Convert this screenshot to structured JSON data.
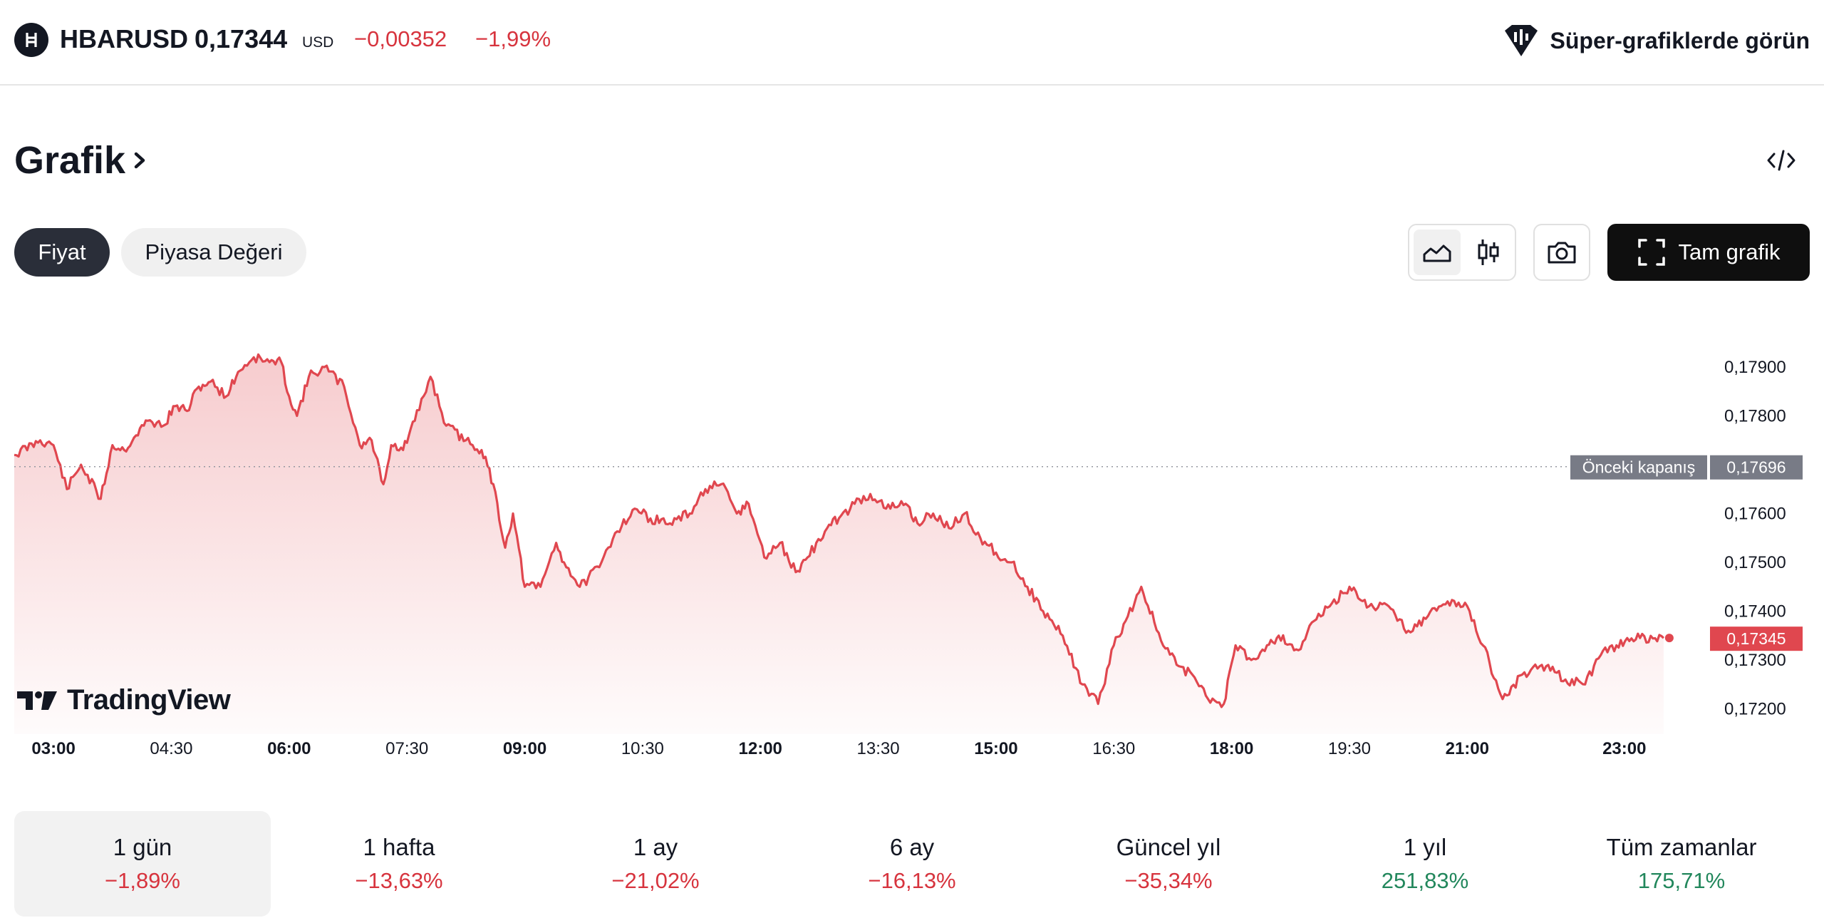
{
  "header": {
    "symbol": "HBARUSD",
    "price": "0,17344",
    "currency": "USD",
    "change": "−0,00352",
    "change_percent": "−1,99%",
    "super_charts_label": "Süper-grafiklerde görün"
  },
  "section": {
    "title": "Grafik"
  },
  "chips": {
    "price": "Fiyat",
    "market_cap": "Piyasa Değeri"
  },
  "toolbar": {
    "full_chart_label": "Tam grafik"
  },
  "brand": {
    "name": "TradingView"
  },
  "colors": {
    "line": "#e0474f",
    "negative": "#d7343e",
    "positive": "#22875c",
    "prev_close_tag": "#787b86"
  },
  "chart_data": {
    "type": "area",
    "y_ticks": [
      "0,17900",
      "0,17800",
      "0,17600",
      "0,17500",
      "0,17400",
      "0,17300",
      "0,17200"
    ],
    "ylim": [
      0.1718,
      0.1795
    ],
    "x_ticks": [
      {
        "label": "03:00",
        "major": true
      },
      {
        "label": "04:30",
        "major": false
      },
      {
        "label": "06:00",
        "major": true
      },
      {
        "label": "07:30",
        "major": false
      },
      {
        "label": "09:00",
        "major": true
      },
      {
        "label": "10:30",
        "major": false
      },
      {
        "label": "12:00",
        "major": true
      },
      {
        "label": "13:30",
        "major": false
      },
      {
        "label": "15:00",
        "major": true
      },
      {
        "label": "16:30",
        "major": false
      },
      {
        "label": "18:00",
        "major": true
      },
      {
        "label": "19:30",
        "major": false
      },
      {
        "label": "21:00",
        "major": true
      },
      {
        "label": "23:00",
        "major": true
      }
    ],
    "previous_close": {
      "label": "Önceki kapanış",
      "value_label": "0,17696",
      "value": 0.17696
    },
    "last": {
      "value_label": "0,17345",
      "value": 0.17345
    },
    "x_hours": [
      2.5,
      2.83,
      3.0,
      3.17,
      3.35,
      3.6,
      3.75,
      3.9,
      4.05,
      4.2,
      4.4,
      4.55,
      4.7,
      4.85,
      5.0,
      5.2,
      5.35,
      5.55,
      5.75,
      5.9,
      6.0,
      6.1,
      6.25,
      6.45,
      6.7,
      6.9,
      7.05,
      7.2,
      7.3,
      7.45,
      7.6,
      7.8,
      8.0,
      8.25,
      8.45,
      8.6,
      8.75,
      8.85,
      9.0,
      9.2,
      9.4,
      9.5,
      9.7,
      9.95,
      10.15,
      10.4,
      10.6,
      10.85,
      11.1,
      11.3,
      11.5,
      11.7,
      11.85,
      12.05,
      12.25,
      12.45,
      12.6,
      12.85,
      13.0,
      13.2,
      13.4,
      13.6,
      13.85,
      14.0,
      14.2,
      14.4,
      14.6,
      14.8,
      15.0,
      15.2,
      15.4,
      15.6,
      15.85,
      16.1,
      16.3,
      16.5,
      16.65,
      16.85,
      17.1,
      17.3,
      17.5,
      17.7,
      17.9,
      18.05,
      18.25,
      18.45,
      18.6,
      18.85,
      19.05,
      19.25,
      19.5,
      19.75,
      20.0,
      20.25,
      20.5,
      20.75,
      21.0,
      21.2,
      21.45,
      21.7,
      21.95,
      22.25,
      22.5,
      22.7,
      22.9,
      23.2,
      23.5
    ],
    "values": [
      0.1772,
      0.1775,
      0.1774,
      0.1765,
      0.177,
      0.1763,
      0.1774,
      0.1773,
      0.1776,
      0.1779,
      0.1778,
      0.1782,
      0.1781,
      0.1786,
      0.1787,
      0.1784,
      0.1789,
      0.1792,
      0.1791,
      0.1791,
      0.1784,
      0.178,
      0.1788,
      0.179,
      0.1786,
      0.1774,
      0.1775,
      0.1766,
      0.1774,
      0.1773,
      0.1779,
      0.1788,
      0.1778,
      0.1775,
      0.1773,
      0.1766,
      0.1753,
      0.176,
      0.1745,
      0.1745,
      0.1754,
      0.175,
      0.1745,
      0.1749,
      0.1756,
      0.1761,
      0.1759,
      0.1758,
      0.176,
      0.1765,
      0.1766,
      0.176,
      0.1762,
      0.1751,
      0.1754,
      0.1748,
      0.1751,
      0.1757,
      0.1759,
      0.1762,
      0.1764,
      0.1761,
      0.1762,
      0.1758,
      0.176,
      0.1757,
      0.176,
      0.1755,
      0.1752,
      0.175,
      0.1745,
      0.174,
      0.1735,
      0.1725,
      0.1721,
      0.1733,
      0.1738,
      0.1745,
      0.1734,
      0.1729,
      0.1727,
      0.1722,
      0.1721,
      0.1733,
      0.173,
      0.1733,
      0.1735,
      0.1732,
      0.1738,
      0.1741,
      0.1745,
      0.1741,
      0.1741,
      0.1736,
      0.1739,
      0.1742,
      0.1741,
      0.1733,
      0.1722,
      0.1727,
      0.1729,
      0.1726,
      0.1725,
      0.1731,
      0.1733,
      0.17345,
      0.17345
    ]
  },
  "periods": [
    {
      "label": "1 gün",
      "value": "−1,89%",
      "dir": "neg"
    },
    {
      "label": "1 hafta",
      "value": "−13,63%",
      "dir": "neg"
    },
    {
      "label": "1 ay",
      "value": "−21,02%",
      "dir": "neg"
    },
    {
      "label": "6 ay",
      "value": "−16,13%",
      "dir": "neg"
    },
    {
      "label": "Güncel yıl",
      "value": "−35,34%",
      "dir": "neg"
    },
    {
      "label": "1 yıl",
      "value": "251,83%",
      "dir": "pos"
    },
    {
      "label": "Tüm zamanlar",
      "value": "175,71%",
      "dir": "pos"
    }
  ]
}
